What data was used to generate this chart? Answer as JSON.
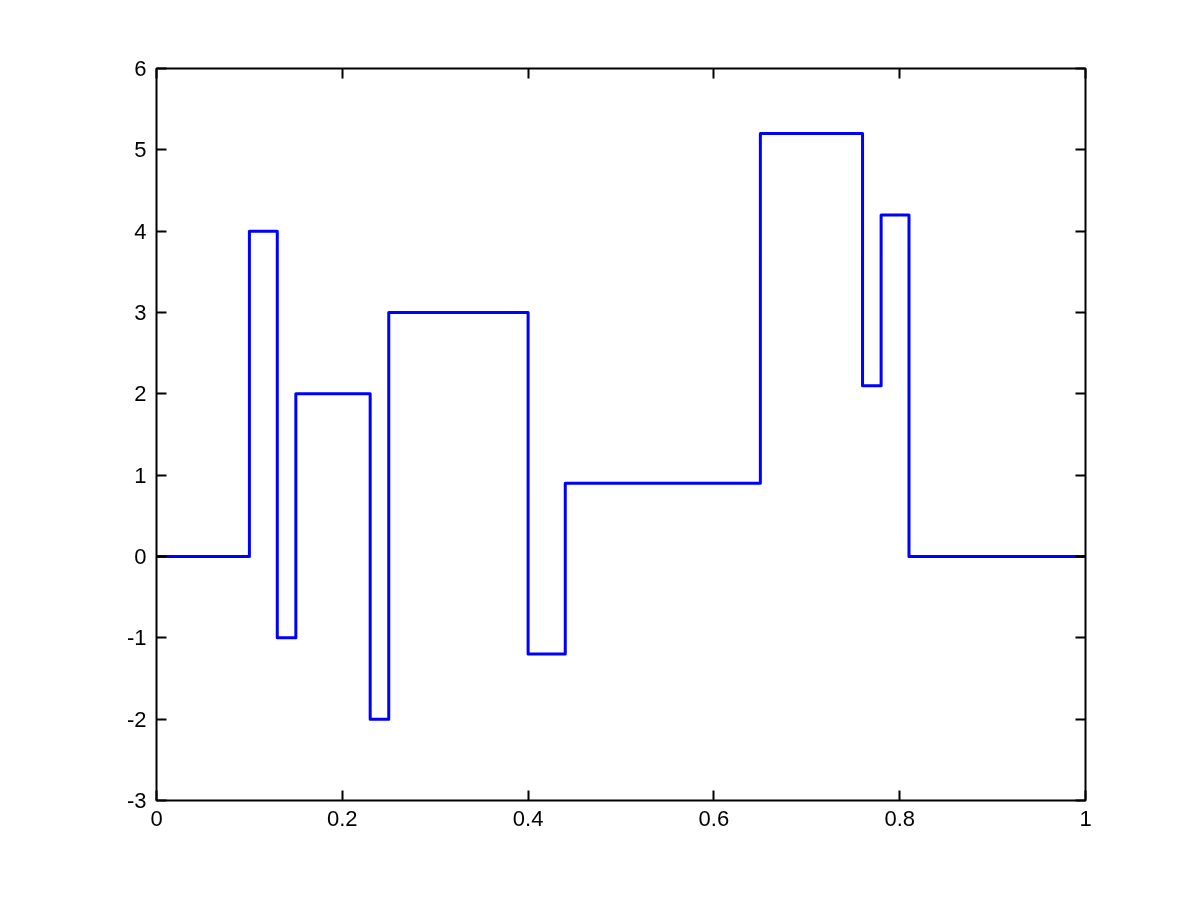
{
  "chart_data": {
    "type": "step",
    "x": [
      0,
      0.1,
      0.13,
      0.15,
      0.23,
      0.25,
      0.4,
      0.44,
      0.65,
      0.76,
      0.78,
      0.81,
      1
    ],
    "series": [
      {
        "color": "#0000ff",
        "values": [
          0,
          4,
          -1,
          2,
          -2,
          3,
          -1.2,
          0.9,
          5.2,
          2.1,
          4.2,
          0,
          0
        ]
      }
    ],
    "xlim": [
      0,
      1
    ],
    "xticks": [
      0,
      0.2,
      0.4,
      0.6,
      0.8,
      1
    ],
    "ylim": [
      -3,
      6
    ],
    "yticks": [
      -3,
      -2,
      -1,
      0,
      1,
      2,
      3,
      4,
      5,
      6
    ],
    "grid": false,
    "marker": "none",
    "line_style": "solid"
  }
}
